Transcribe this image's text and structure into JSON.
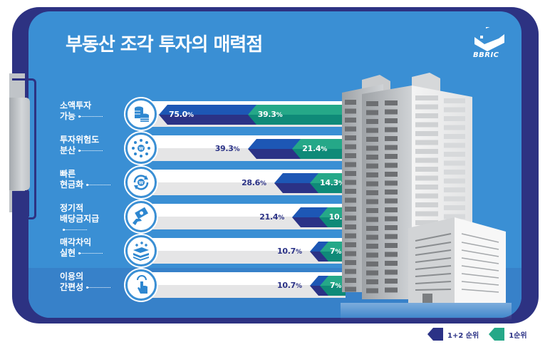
{
  "title": "부동산 조각 투자의 매력점",
  "logo": {
    "text": "BBRIC",
    "icon": "bbric-logo-icon"
  },
  "colors": {
    "board_outer": "#2d3282",
    "board_inner": "#3a8fd4",
    "rank12": "#2b3286",
    "rank12_light": "#1d57b5",
    "rank1": "#0f8a78",
    "rank1_light": "#25a888"
  },
  "legend": [
    {
      "label": "1+2 순위",
      "color": "#2b3286"
    },
    {
      "label": "1순위",
      "color": "#25a888"
    }
  ],
  "rows": [
    {
      "line1": "소액투자",
      "line2": "가능",
      "icon": "coins-icon",
      "rank12": "75.0",
      "rank1": "39.3"
    },
    {
      "line1": "투자위험도",
      "line2": "분산",
      "icon": "network-won-icon",
      "rank12": "39.3",
      "rank1": "21.4"
    },
    {
      "line1": "빠른",
      "line2": "현금화",
      "icon": "cycle-won-icon",
      "rank12": "28.6",
      "rank1": "14.3"
    },
    {
      "line1": "정기적",
      "line2": "배당금지급",
      "icon": "hand-money-icon",
      "rank12": "21.4",
      "rank1": "10.7"
    },
    {
      "line1": "매각차익",
      "line2": "실현",
      "icon": "money-stack-icon",
      "rank12": "10.7",
      "rank1": "7"
    },
    {
      "line1": "이용의",
      "line2": "간편성",
      "icon": "pointer-hand-icon",
      "rank12": "10.7",
      "rank1": "7"
    }
  ],
  "pct_sign": "%",
  "chart_data": {
    "type": "bar",
    "orientation": "horizontal",
    "title": "부동산 조각 투자의 매력점",
    "categories": [
      "소액투자 가능",
      "투자위험도 분산",
      "빠른 현금화",
      "정기적 배당금지급",
      "매각차익 실현",
      "이용의 간편성"
    ],
    "series": [
      {
        "name": "1+2 순위",
        "values": [
          75.0,
          39.3,
          28.6,
          21.4,
          10.7,
          10.7
        ]
      },
      {
        "name": "1순위",
        "values": [
          39.3,
          21.4,
          14.3,
          10.7,
          7,
          7
        ]
      }
    ],
    "unit": "%",
    "legend_position": "bottom-right",
    "grid": false
  }
}
